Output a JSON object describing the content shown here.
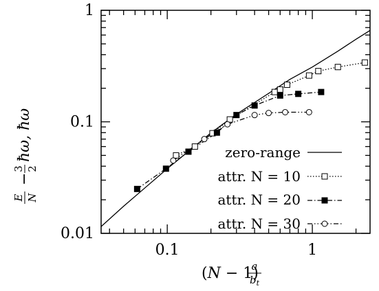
{
  "chart_data": {
    "type": "line",
    "xscale": "log",
    "yscale": "log",
    "xlim": [
      0.035,
      2.5
    ],
    "ylim": [
      0.01,
      1
    ],
    "xlabel": "(N − 1) a/b_t",
    "ylabel": "E/N − 3/2 ħω, ħω",
    "x_ticks": [
      {
        "value": 0.1,
        "label": "0.1"
      },
      {
        "value": 1,
        "label": "1"
      }
    ],
    "y_ticks": [
      {
        "value": 0.01,
        "label": "0.01"
      },
      {
        "value": 0.1,
        "label": "0.1"
      },
      {
        "value": 1,
        "label": "1"
      }
    ],
    "grid": false,
    "legend_position": "bottom-right",
    "series": [
      {
        "name": "zero-range",
        "style": "solid",
        "marker": "none",
        "x": [
          0.035,
          0.05,
          0.07,
          0.1,
          0.15,
          0.2,
          0.3,
          0.5,
          0.7,
          1.0,
          1.5,
          2.0,
          2.5
        ],
        "y": [
          0.0115,
          0.0175,
          0.0255,
          0.038,
          0.0585,
          0.0795,
          0.117,
          0.18,
          0.24,
          0.31,
          0.43,
          0.55,
          0.66
        ]
      },
      {
        "name": "attr. N = 10",
        "style": "dotted",
        "marker": "open-square",
        "x": [
          0.115,
          0.155,
          0.205,
          0.27,
          0.55,
          0.6,
          0.67,
          0.95,
          1.1,
          1.5,
          2.3
        ],
        "y": [
          0.05,
          0.06,
          0.079,
          0.105,
          0.185,
          0.195,
          0.215,
          0.26,
          0.285,
          0.31,
          0.34
        ]
      },
      {
        "name": "attr. N = 20",
        "style": "dash-dot",
        "marker": "filled-square",
        "x": [
          0.062,
          0.098,
          0.14,
          0.22,
          0.3,
          0.4,
          0.6,
          0.8,
          1.15
        ],
        "y": [
          0.025,
          0.038,
          0.054,
          0.08,
          0.115,
          0.14,
          0.172,
          0.178,
          0.185
        ]
      },
      {
        "name": "attr. N = 30",
        "style": "dash-dot-dot",
        "marker": "open-circle",
        "x": [
          0.11,
          0.18,
          0.26,
          0.4,
          0.5,
          0.65,
          0.95
        ],
        "y": [
          0.045,
          0.07,
          0.095,
          0.115,
          0.12,
          0.122,
          0.122
        ]
      }
    ]
  }
}
